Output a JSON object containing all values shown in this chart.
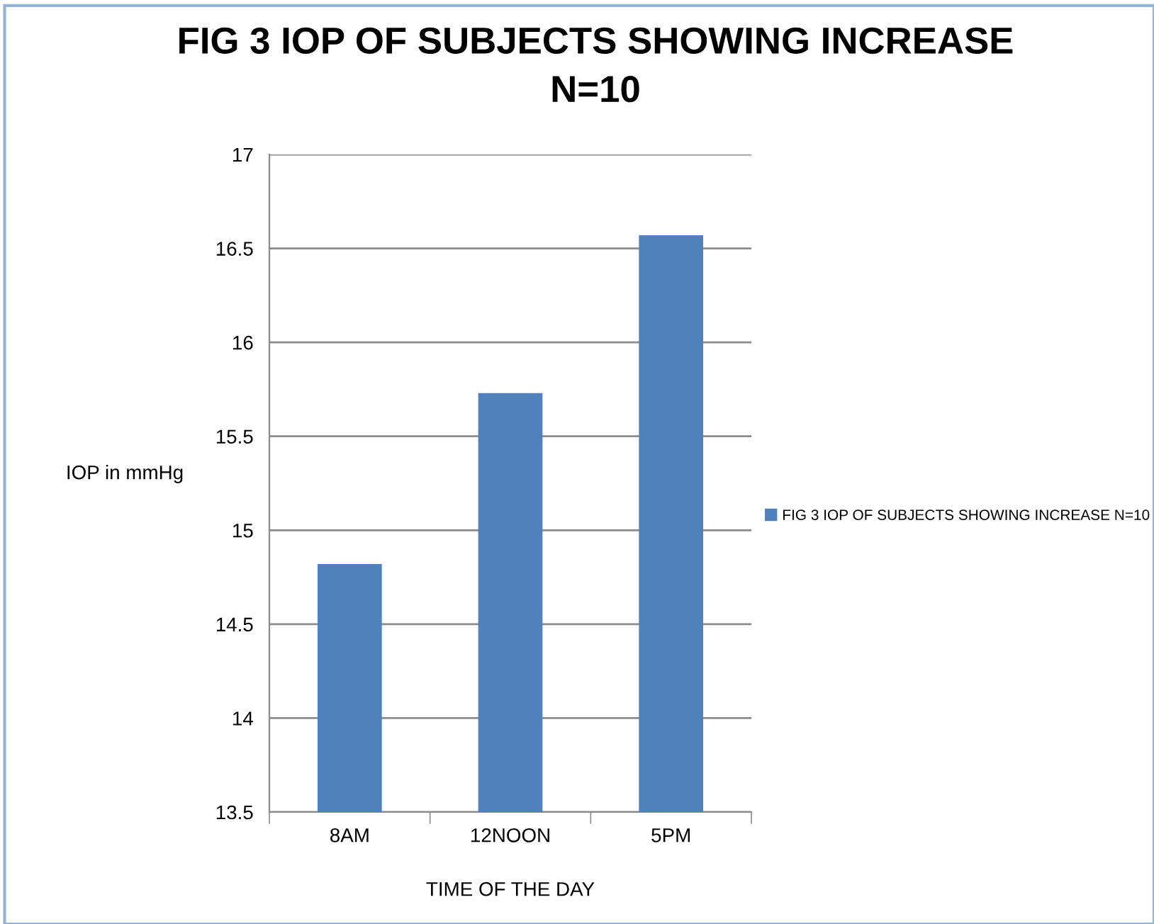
{
  "chart_data": {
    "type": "bar",
    "title": "FIG 3 IOP OF SUBJECTS SHOWING INCREASE\nN=10",
    "xlabel": "TIME OF THE DAY",
    "ylabel": "IOP in mmHg",
    "categories": [
      "8AM",
      "12NOON",
      "5PM"
    ],
    "series": [
      {
        "name": "FIG 3 IOP OF SUBJECTS SHOWING INCREASE N=10",
        "color": "#4f81bd",
        "values": [
          14.82,
          15.73,
          16.57
        ]
      }
    ],
    "ylim": [
      13.5,
      17
    ],
    "yticks": [
      13.5,
      14,
      14.5,
      15,
      15.5,
      16,
      16.5,
      17
    ],
    "grid": "y",
    "legend": "right"
  }
}
